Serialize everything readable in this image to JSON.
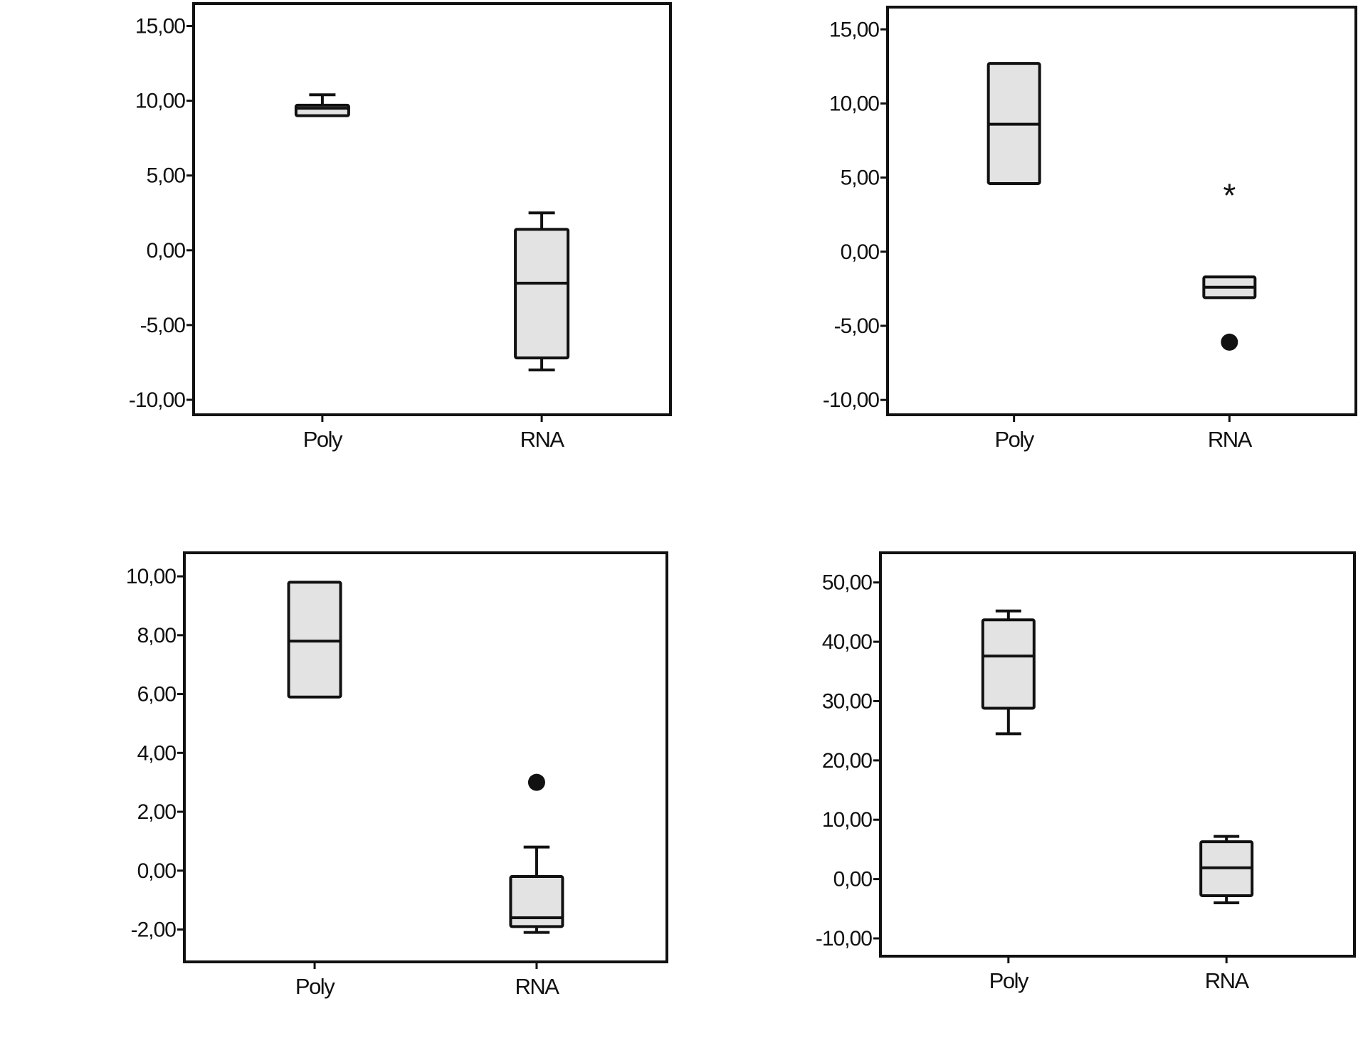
{
  "colors": {
    "axis": "#111111",
    "box_fill": "#e3e3e3",
    "background": "#ffffff"
  },
  "chart_data": [
    {
      "type": "boxplot",
      "grid": false,
      "title": "",
      "xlabel": "",
      "ylabel": "",
      "categories": [
        "Poly",
        "RNA"
      ],
      "ylim": [
        -11,
        16.5
      ],
      "yticks": [
        15,
        10,
        5,
        0,
        -5,
        -10
      ],
      "ytick_labels": [
        "15,00",
        "10,00",
        "5,00",
        "0,00",
        "-5,00",
        "-10,00"
      ],
      "boxes": [
        {
          "category": "Poly",
          "min": 9.0,
          "q1": 9.0,
          "median": 9.5,
          "q3": 9.7,
          "max": 10.4,
          "outliers": [],
          "extremes": []
        },
        {
          "category": "RNA",
          "min": -8.0,
          "q1": -7.2,
          "median": -2.2,
          "q3": 1.4,
          "max": 2.5,
          "outliers": [],
          "extremes": []
        }
      ]
    },
    {
      "type": "boxplot",
      "grid": false,
      "title": "",
      "xlabel": "",
      "ylabel": "",
      "categories": [
        "Poly",
        "RNA"
      ],
      "ylim": [
        -11,
        16.5
      ],
      "yticks": [
        15,
        10,
        5,
        0,
        -5,
        -10
      ],
      "ytick_labels": [
        "15,00",
        "10,00",
        "5,00",
        "0,00",
        "-5,00",
        "-10,00"
      ],
      "boxes": [
        {
          "category": "Poly",
          "min": 4.6,
          "q1": 4.6,
          "median": 8.6,
          "q3": 12.7,
          "max": 12.7,
          "outliers": [],
          "extremes": []
        },
        {
          "category": "RNA",
          "min": -3.1,
          "q1": -3.1,
          "median": -2.4,
          "q3": -1.7,
          "max": -1.7,
          "outliers": [
            -6.1
          ],
          "extremes": [
            3.9
          ]
        }
      ]
    },
    {
      "type": "boxplot",
      "grid": false,
      "title": "",
      "xlabel": "",
      "ylabel": "",
      "categories": [
        "Poly",
        "RNA"
      ],
      "ylim": [
        -3.1,
        10.8
      ],
      "yticks": [
        10,
        8,
        6,
        4,
        2,
        0,
        -2
      ],
      "ytick_labels": [
        "10,00",
        "8,00",
        "6,00",
        "4,00",
        "2,00",
        "0,00",
        "-2,00"
      ],
      "boxes": [
        {
          "category": "Poly",
          "min": 5.9,
          "q1": 5.9,
          "median": 7.8,
          "q3": 9.8,
          "max": 9.8,
          "outliers": [],
          "extremes": []
        },
        {
          "category": "RNA",
          "min": -2.1,
          "q1": -1.9,
          "median": -1.6,
          "q3": -0.2,
          "max": 0.8,
          "outliers": [
            3.0
          ],
          "extremes": []
        }
      ]
    },
    {
      "type": "boxplot",
      "grid": false,
      "title": "",
      "xlabel": "",
      "ylabel": "",
      "categories": [
        "Poly",
        "RNA"
      ],
      "ylim": [
        -13,
        55
      ],
      "yticks": [
        50,
        40,
        30,
        20,
        10,
        0,
        -10
      ],
      "ytick_labels": [
        "50,00",
        "40,00",
        "30,00",
        "20,00",
        "10,00",
        "0,00",
        "-10,00"
      ],
      "boxes": [
        {
          "category": "Poly",
          "min": 24.5,
          "q1": 28.8,
          "median": 37.6,
          "q3": 43.7,
          "max": 45.2,
          "outliers": [],
          "extremes": []
        },
        {
          "category": "RNA",
          "min": -4.0,
          "q1": -2.8,
          "median": 1.9,
          "q3": 6.3,
          "max": 7.2,
          "outliers": [],
          "extremes": []
        }
      ]
    }
  ]
}
